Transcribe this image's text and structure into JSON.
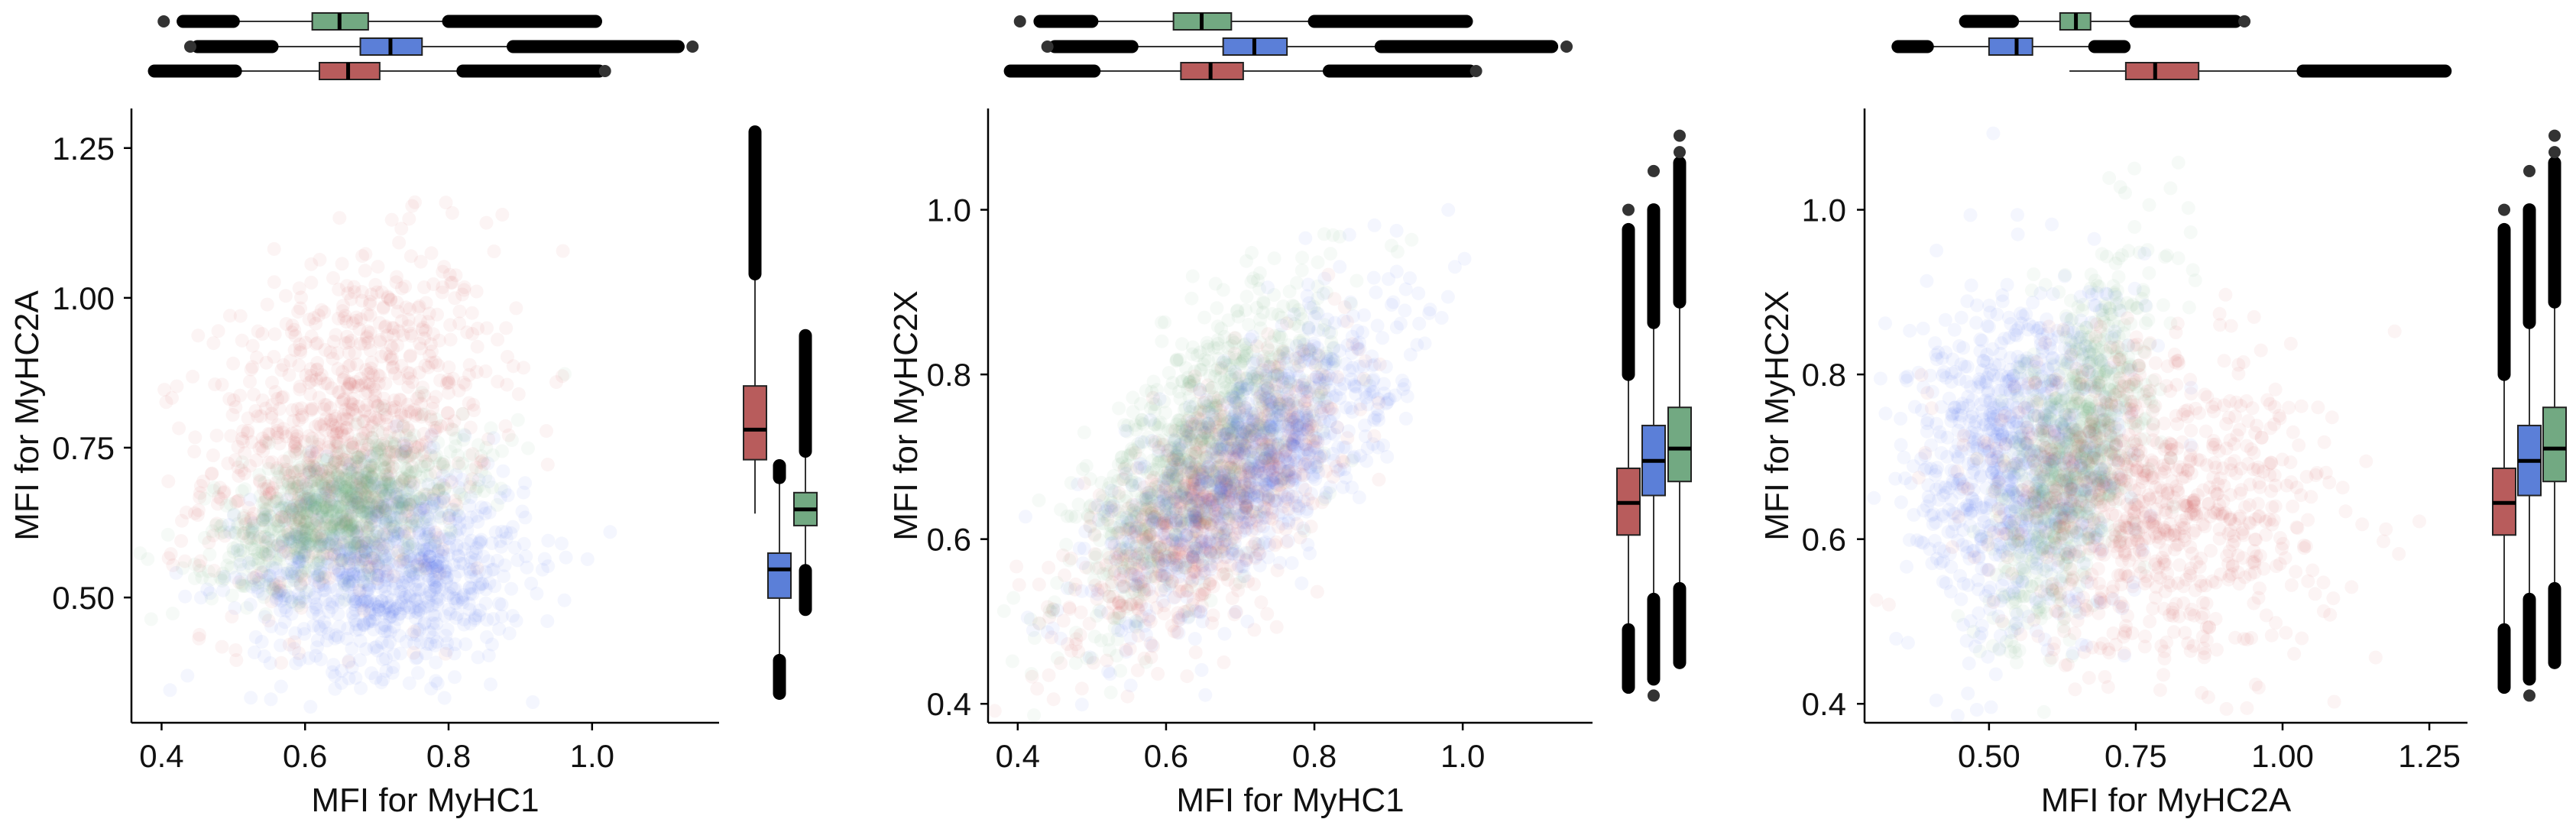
{
  "chart_data": [
    {
      "type": "scatter",
      "xlabel": "MFI for MyHC1",
      "ylabel": "MFI for MyHC2A",
      "xlim": [
        0.358,
        1.177
      ],
      "ylim": [
        0.291,
        1.316
      ],
      "xticks": [
        {
          "value": 0.4,
          "label": "0.4"
        },
        {
          "value": 0.6,
          "label": "0.6"
        },
        {
          "value": 0.8,
          "label": "0.8"
        },
        {
          "value": 1.0,
          "label": "1.0"
        }
      ],
      "yticks": [
        {
          "value": 0.5,
          "label": "0.50"
        },
        {
          "value": 0.75,
          "label": "0.75"
        },
        {
          "value": 1.0,
          "label": "1.00"
        },
        {
          "value": 1.25,
          "label": "1.25"
        }
      ],
      "grid": false,
      "marginal_boxplots": {
        "top": "x",
        "right": "y"
      },
      "series": [
        {
          "color": "#d04848",
          "box_color": "#b85c5c",
          "x_box": {
            "q1": 0.62,
            "median": 0.66,
            "q3": 0.704,
            "whisker_low": 0.503,
            "whisker_high": 0.82,
            "outliers_low": [
              0.39,
              0.503
            ],
            "outliers_high": [
              0.82,
              1.01
            ],
            "extreme_points": [
              1.018
            ]
          },
          "y_box": {
            "q1": 0.73,
            "median": 0.78,
            "q3": 0.853,
            "whisker_low": 0.64,
            "whisker_high": 1.04,
            "outliers_low": null,
            "outliers_high": [
              1.04,
              1.277
            ],
            "extreme_points": []
          }
        },
        {
          "color": "#4a6ef0",
          "box_color": "#5b7fd8",
          "x_box": {
            "q1": 0.677,
            "median": 0.719,
            "q3": 0.763,
            "whisker_low": 0.554,
            "whisker_high": 0.89,
            "outliers_low": [
              0.45,
              0.554
            ],
            "outliers_high": [
              0.89,
              1.12
            ],
            "extreme_points": [
              0.44,
              1.14
            ]
          },
          "y_box": {
            "q1": 0.499,
            "median": 0.547,
            "q3": 0.574,
            "whisker_low": 0.395,
            "whisker_high": 0.7,
            "outliers_low": [
              0.34,
              0.395
            ],
            "outliers_high": [
              0.7,
              0.72
            ],
            "extreme_points": []
          }
        },
        {
          "color": "#5fae72",
          "box_color": "#72a982",
          "x_box": {
            "q1": 0.61,
            "median": 0.648,
            "q3": 0.688,
            "whisker_low": 0.5,
            "whisker_high": 0.8,
            "outliers_low": [
              0.43,
              0.5
            ],
            "outliers_high": [
              0.8,
              1.005
            ],
            "extreme_points": [
              0.403
            ]
          },
          "y_box": {
            "q1": 0.62,
            "median": 0.647,
            "q3": 0.675,
            "whisker_low": 0.545,
            "whisker_high": 0.744,
            "outliers_low": [
              0.48,
              0.545
            ],
            "outliers_high": [
              0.744,
              0.937
            ],
            "extreme_points": []
          }
        }
      ]
    },
    {
      "type": "scatter",
      "xlabel": "MFI for MyHC1",
      "ylabel": "MFI for MyHC2X",
      "xlim": [
        0.36,
        1.175
      ],
      "ylim": [
        0.377,
        1.123
      ],
      "xticks": [
        {
          "value": 0.4,
          "label": "0.4"
        },
        {
          "value": 0.6,
          "label": "0.6"
        },
        {
          "value": 0.8,
          "label": "0.8"
        },
        {
          "value": 1.0,
          "label": "1.0"
        }
      ],
      "yticks": [
        {
          "value": 0.4,
          "label": "0.4"
        },
        {
          "value": 0.6,
          "label": "0.6"
        },
        {
          "value": 0.8,
          "label": "0.8"
        },
        {
          "value": 1.0,
          "label": "1.0"
        }
      ],
      "grid": false,
      "marginal_boxplots": {
        "top": "x",
        "right": "y"
      },
      "series": [
        {
          "color": "#d04848",
          "box_color": "#b85c5c",
          "x_box": {
            "q1": 0.62,
            "median": 0.66,
            "q3": 0.704,
            "whisker_low": 0.503,
            "whisker_high": 0.82,
            "outliers_low": [
              0.39,
              0.503
            ],
            "outliers_high": [
              0.82,
              1.01
            ],
            "extreme_points": [
              1.018
            ]
          },
          "y_box": {
            "q1": 0.605,
            "median": 0.644,
            "q3": 0.686,
            "whisker_low": 0.49,
            "whisker_high": 0.8,
            "outliers_low": [
              0.42,
              0.49
            ],
            "outliers_high": [
              0.8,
              0.976
            ],
            "extreme_points": [
              1.0
            ]
          }
        },
        {
          "color": "#4a6ef0",
          "box_color": "#5b7fd8",
          "x_box": {
            "q1": 0.677,
            "median": 0.719,
            "q3": 0.763,
            "whisker_low": 0.554,
            "whisker_high": 0.89,
            "outliers_low": [
              0.45,
              0.554
            ],
            "outliers_high": [
              0.89,
              1.12
            ],
            "extreme_points": [
              0.44,
              1.14
            ]
          },
          "y_box": {
            "q1": 0.653,
            "median": 0.695,
            "q3": 0.738,
            "whisker_low": 0.527,
            "whisker_high": 0.863,
            "outliers_low": [
              0.43,
              0.527
            ],
            "outliers_high": [
              0.863,
              1.0
            ],
            "extreme_points": [
              0.41,
              1.047
            ]
          }
        },
        {
          "color": "#5fae72",
          "box_color": "#72a982",
          "x_box": {
            "q1": 0.61,
            "median": 0.648,
            "q3": 0.688,
            "whisker_low": 0.5,
            "whisker_high": 0.8,
            "outliers_low": [
              0.43,
              0.5
            ],
            "outliers_high": [
              0.8,
              1.005
            ],
            "extreme_points": [
              0.403
            ]
          },
          "y_box": {
            "q1": 0.67,
            "median": 0.71,
            "q3": 0.76,
            "whisker_low": 0.54,
            "whisker_high": 0.888,
            "outliers_low": [
              0.45,
              0.54
            ],
            "outliers_high": [
              0.888,
              1.057
            ],
            "extreme_points": [
              1.07,
              1.09
            ]
          }
        }
      ]
    },
    {
      "type": "scatter",
      "xlabel": "MFI for MyHC2A",
      "ylabel": "MFI for MyHC2X",
      "xlim": [
        0.288,
        1.315
      ],
      "ylim": [
        0.377,
        1.123
      ],
      "xticks": [
        {
          "value": 0.5,
          "label": "0.50"
        },
        {
          "value": 0.75,
          "label": "0.75"
        },
        {
          "value": 1.0,
          "label": "1.00"
        },
        {
          "value": 1.25,
          "label": "1.25"
        }
      ],
      "yticks": [
        {
          "value": 0.4,
          "label": "0.4"
        },
        {
          "value": 0.6,
          "label": "0.6"
        },
        {
          "value": 0.8,
          "label": "0.8"
        },
        {
          "value": 1.0,
          "label": "1.0"
        }
      ],
      "grid": false,
      "marginal_boxplots": {
        "top": "x",
        "right": "y"
      },
      "series": [
        {
          "color": "#d04848",
          "box_color": "#b85c5c",
          "x_box": {
            "q1": 0.733,
            "median": 0.783,
            "q3": 0.857,
            "whisker_low": 0.637,
            "whisker_high": 1.035,
            "outliers_low": null,
            "outliers_high": [
              1.035,
              1.277
            ],
            "extreme_points": []
          },
          "y_box": {
            "q1": 0.605,
            "median": 0.644,
            "q3": 0.686,
            "whisker_low": 0.49,
            "whisker_high": 0.8,
            "outliers_low": [
              0.42,
              0.49
            ],
            "outliers_high": [
              0.8,
              0.976
            ],
            "extreme_points": [
              1.0
            ]
          }
        },
        {
          "color": "#4a6ef0",
          "box_color": "#5b7fd8",
          "x_box": {
            "q1": 0.5,
            "median": 0.547,
            "q3": 0.574,
            "whisker_low": 0.395,
            "whisker_high": 0.675,
            "outliers_low": [
              0.345,
              0.395
            ],
            "outliers_high": [
              0.68,
              0.73
            ],
            "extreme_points": []
          },
          "y_box": {
            "q1": 0.653,
            "median": 0.695,
            "q3": 0.738,
            "whisker_low": 0.527,
            "whisker_high": 0.863,
            "outliers_low": [
              0.43,
              0.527
            ],
            "outliers_high": [
              0.863,
              1.0
            ],
            "extreme_points": [
              0.41,
              1.047
            ]
          }
        },
        {
          "color": "#5fae72",
          "box_color": "#72a982",
          "x_box": {
            "q1": 0.621,
            "median": 0.648,
            "q3": 0.673,
            "whisker_low": 0.54,
            "whisker_high": 0.74,
            "outliers_low": [
              0.46,
              0.54
            ],
            "outliers_high": [
              0.75,
              0.92
            ],
            "extreme_points": [
              0.935
            ]
          },
          "y_box": {
            "q1": 0.67,
            "median": 0.71,
            "q3": 0.76,
            "whisker_low": 0.54,
            "whisker_high": 0.888,
            "outliers_low": [
              0.45,
              0.54
            ],
            "outliers_high": [
              0.888,
              1.057
            ],
            "extreme_points": [
              1.07,
              1.09
            ]
          }
        }
      ]
    }
  ]
}
